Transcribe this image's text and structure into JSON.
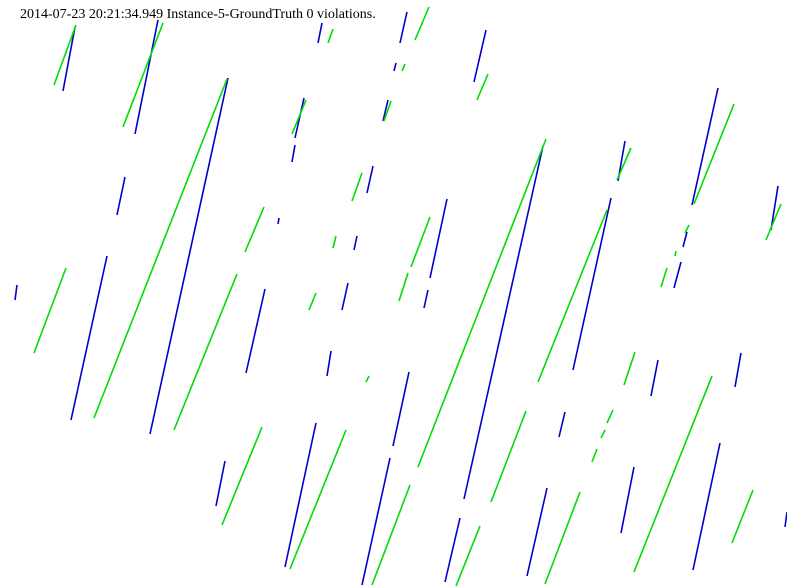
{
  "header": {
    "timestamp": "2014-07-23 20:21:34.949",
    "instance": "Instance-5-GroundTruth",
    "violations": "0 violations."
  },
  "colors": {
    "background": "#ffffff",
    "text": "#000000",
    "blue_segments": "#0000cc",
    "green_segments": "#00dd00"
  }
}
